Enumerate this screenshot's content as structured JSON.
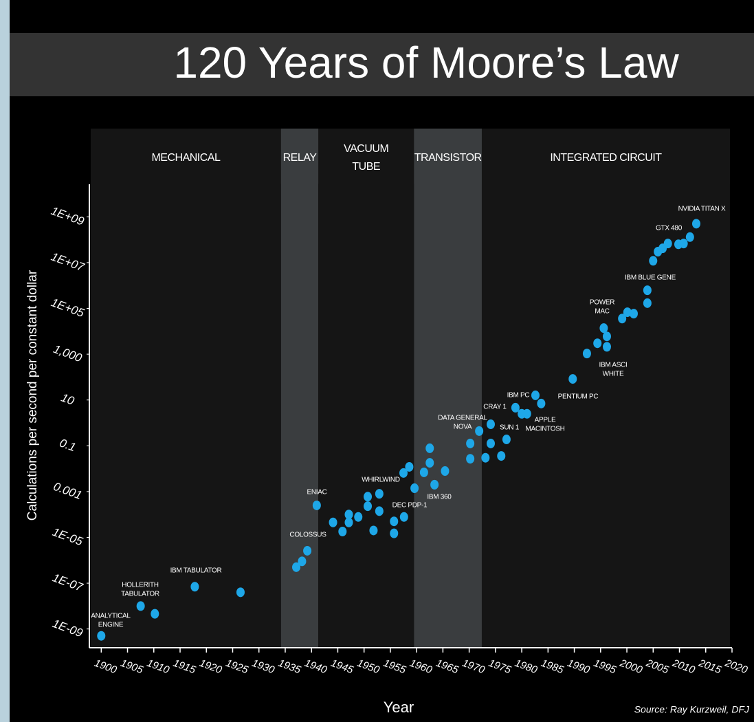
{
  "chart_data": {
    "type": "scatter",
    "title": "120 Years of Moore’s Law",
    "x_label": "Year",
    "y_label": "Calculations per second per constant dollar",
    "source": "Source: Ray Kurzweil, DFJ",
    "log_y": true,
    "xlim": [
      1898,
      2020
    ],
    "ylim": [
      1e-10,
      10000000000.0
    ],
    "xticks": [
      1900,
      1905,
      1910,
      1915,
      1920,
      1925,
      1930,
      1935,
      1940,
      1945,
      1950,
      1955,
      1960,
      1965,
      1970,
      1975,
      1980,
      1985,
      1990,
      1995,
      2000,
      2005,
      2010,
      2015,
      2020
    ],
    "yticks": [
      {
        "value": 1e-09,
        "label": "1E-09"
      },
      {
        "value": 1e-07,
        "label": "1E-07"
      },
      {
        "value": 1e-05,
        "label": "1E-05"
      },
      0.001,
      0.1,
      10,
      {
        "value": 1000,
        "label": "1,000"
      },
      {
        "value": 100000,
        "label": "1E+05"
      },
      {
        "value": 10000000,
        "label": "1E+07"
      },
      {
        "value": 1000000000,
        "label": "1E+09"
      }
    ],
    "eras": [
      {
        "lines": [
          "MECHANICAL"
        ],
        "start": 1898,
        "end": 1934.2,
        "shaded": false
      },
      {
        "lines": [
          "RELAY"
        ],
        "start": 1934.2,
        "end": 1941.3,
        "shaded": true
      },
      {
        "lines": [
          "VACUUM",
          "TUBE"
        ],
        "start": 1941.3,
        "end": 1959.5,
        "shaded": false
      },
      {
        "lines": [
          "TRANSISTOR"
        ],
        "start": 1959.5,
        "end": 1972.4,
        "shaded": true
      },
      {
        "lines": [
          "INTEGRATED CIRCUIT"
        ],
        "start": 1972.4,
        "end": 2019.6,
        "shaded": false
      }
    ],
    "series": [
      {
        "name": "Computers",
        "color": "#1ea7e8",
        "x": [
          1900,
          1907.5,
          1910.2,
          1917.8,
          1926.5,
          1937.1,
          1938.2,
          1939.2,
          1941,
          1944.1,
          1945.9,
          1947.1,
          1947.1,
          1948.9,
          1950.7,
          1950.7,
          1951.8,
          1952.9,
          1952.9,
          1955.7,
          1955.7,
          1957.6,
          1957.5,
          1958.6,
          1959.6,
          1961.4,
          1962.5,
          1962.5,
          1963.4,
          1965.4,
          1970.2,
          1970.2,
          1971.9,
          1973.1,
          1974.1,
          1974.1,
          1976.1,
          1977.1,
          1978.8,
          1980,
          1981,
          1982.6,
          1983.7,
          1989.7,
          1992.4,
          1994.4,
          1995.6,
          1996.2,
          1996.2,
          1999.1,
          2000.1,
          2001.3,
          2003.9,
          2003.9,
          2005,
          2005.9,
          2006.8,
          2007.8,
          2009.8,
          2010.8,
          2012,
          2013.2
        ],
        "values": [
          5e-10,
          1e-08,
          4.6e-09,
          7e-08,
          4e-08,
          5e-07,
          9e-07,
          2.6e-06,
          0.00025,
          4.5e-05,
          1.8e-05,
          0.0001,
          4.5e-05,
          7.8e-05,
          0.0006,
          0.00023,
          2e-05,
          0.0008,
          0.00014,
          5e-05,
          1.5e-05,
          7.8e-05,
          0.0065,
          0.012,
          0.0014,
          0.0069,
          0.078,
          0.018,
          0.002,
          0.0079,
          0.126,
          0.027,
          0.44,
          0.03,
          0.87,
          0.126,
          0.036,
          0.19,
          4.6,
          2.5,
          2.5,
          16,
          7,
          83,
          1070,
          3000,
          13800,
          6000,
          2100,
          36000,
          68000,
          59000,
          170000,
          620000,
          12000000,
          30000000,
          42000000,
          68000000,
          63000000,
          68000000,
          130000000,
          500000000
        ]
      }
    ],
    "annotations": [
      {
        "lines": [
          "ANALYTICAL",
          "ENGINE"
        ]
      },
      {
        "lines": [
          "HOLLERITH",
          "TABULATOR"
        ]
      },
      {
        "lines": [
          "IBM TABULATOR"
        ]
      },
      {
        "lines": [
          "COLOSSUS"
        ]
      },
      {
        "lines": [
          "ENIAC"
        ]
      },
      {
        "lines": [
          "WHIRLWIND"
        ]
      },
      {
        "lines": [
          "DEC PDP-1"
        ]
      },
      {
        "lines": [
          "IBM 360"
        ]
      },
      {
        "lines": [
          "DATA GENERAL",
          "NOVA"
        ]
      },
      {
        "lines": [
          "CRAY 1"
        ]
      },
      {
        "lines": [
          "SUN 1"
        ]
      },
      {
        "lines": [
          "IBM PC"
        ]
      },
      {
        "lines": [
          "APPLE",
          "MACINTOSH"
        ]
      },
      {
        "lines": [
          "PENTIUM PC"
        ]
      },
      {
        "lines": [
          "POWER",
          "MAC"
        ]
      },
      {
        "lines": [
          "IBM ASCI",
          "WHITE"
        ]
      },
      {
        "lines": [
          "IBM BLUE GENE"
        ]
      },
      {
        "lines": [
          "GTX 480"
        ]
      },
      {
        "lines": [
          "NVIDIA TITAN X"
        ]
      }
    ]
  }
}
